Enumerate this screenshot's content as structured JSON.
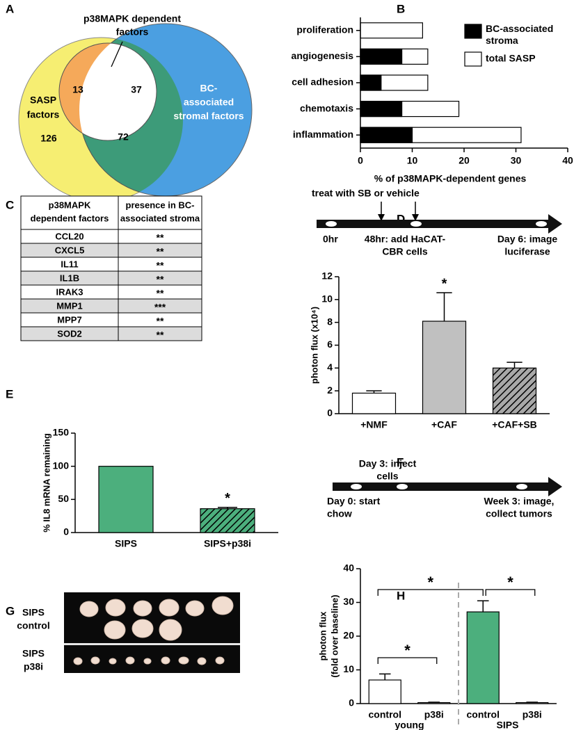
{
  "panel_labels": [
    "A",
    "B",
    "C",
    "D",
    "E",
    "F",
    "G",
    "H"
  ],
  "venn": {
    "p38_label": [
      "p38MAPK dependent",
      "factors"
    ],
    "sasp_label": [
      "SASP",
      "factors"
    ],
    "stroma_label": [
      "BC-",
      "associated",
      "stromal factors"
    ],
    "counts": {
      "sasp_p38": 13,
      "all_three": 37,
      "sasp_only": 126,
      "sasp_stroma": 72
    }
  },
  "table": {
    "header": [
      [
        "p38MAPK",
        "dependent factors"
      ],
      [
        "presence in BC-",
        "associated stroma"
      ]
    ],
    "rows": [
      [
        "CCL20",
        "**"
      ],
      [
        "CXCL5",
        "**"
      ],
      [
        "IL11",
        "**"
      ],
      [
        "IL1B",
        "**"
      ],
      [
        "IRAK3",
        "**"
      ],
      [
        "MMP1",
        "***"
      ],
      [
        "MPP7",
        "**"
      ],
      [
        "SOD2",
        "**"
      ]
    ]
  },
  "timeline_d": {
    "treatment": "treat with SB or vehicle",
    "steps": [
      [
        "0hr"
      ],
      [
        "48hr: add HaCAT-",
        "CBR cells"
      ],
      [
        "Day 6: image",
        "luciferase"
      ]
    ]
  },
  "timeline_f": {
    "steps": [
      [
        "Day 0: start",
        "chow"
      ],
      [
        "Day 3: inject",
        "cells"
      ],
      [
        "Week 3: image,",
        "collect tumors"
      ]
    ]
  },
  "photo": {
    "rows": [
      [
        "SIPS",
        "control"
      ],
      [
        "SIPS",
        "p38i"
      ]
    ]
  },
  "chart_data": [
    {
      "type": "hbar",
      "categories": [
        "proliferation",
        "angiogenesis",
        "cell adhesion",
        "chemotaxis",
        "inflammation"
      ],
      "series": [
        {
          "name": "BC-associated stroma",
          "color": "#000000",
          "values": [
            0,
            8,
            4,
            8,
            10
          ]
        },
        {
          "name": "total SASP",
          "color": "#ffffff",
          "values": [
            12,
            13,
            13,
            19,
            31
          ]
        }
      ],
      "xlabel": "% of p38MAPK-dependent genes",
      "xlim": [
        0,
        40
      ],
      "xticks": [
        0,
        10,
        20,
        30,
        40
      ],
      "legend": "upper right"
    },
    {
      "type": "bar",
      "categories": [
        "+NMF",
        "+CAF",
        "+CAF+SB"
      ],
      "values": [
        1.8,
        8.1,
        4.0
      ],
      "errors": [
        0.2,
        2.5,
        0.5
      ],
      "colors": [
        "#ffffff",
        "#c0c0c0",
        "#a8a8a8"
      ],
      "hatched": [
        false,
        false,
        true
      ],
      "ylabel": [
        "photon flux (x10⁴)"
      ],
      "ylim": [
        0,
        12
      ],
      "yticks": [
        0,
        2,
        4,
        6,
        8,
        10,
        12
      ],
      "annotations": [
        "*"
      ]
    },
    {
      "type": "bar",
      "categories": [
        "SIPS",
        "SIPS+p38i"
      ],
      "values": [
        100,
        36
      ],
      "errors": [
        null,
        2
      ],
      "colors": [
        "#4caf7d",
        "#4caf7d"
      ],
      "hatched": [
        false,
        true
      ],
      "ylabel": [
        "% IL8 mRNA remaining"
      ],
      "ylim": [
        0,
        150
      ],
      "yticks": [
        0,
        50,
        100,
        150
      ],
      "annotations": [
        "*"
      ]
    },
    {
      "type": "bar",
      "categories": [
        "control",
        "p38i",
        "control",
        "p38i"
      ],
      "groups": [
        "young",
        "SIPS"
      ],
      "values": [
        7,
        0.3,
        27.2,
        0.3
      ],
      "errors": [
        1.8,
        0.1,
        3.3,
        0.1
      ],
      "colors": [
        "#ffffff",
        "#ffffff",
        "#4caf7d",
        "#ffffff"
      ],
      "hatched": [
        false,
        false,
        false,
        false
      ],
      "ylabel": [
        "photon flux",
        "(fold over baseline)"
      ],
      "ylim": [
        0,
        40
      ],
      "yticks": [
        0,
        10,
        20,
        30,
        40
      ],
      "annotations": [
        "*",
        "*",
        "*"
      ]
    }
  ]
}
